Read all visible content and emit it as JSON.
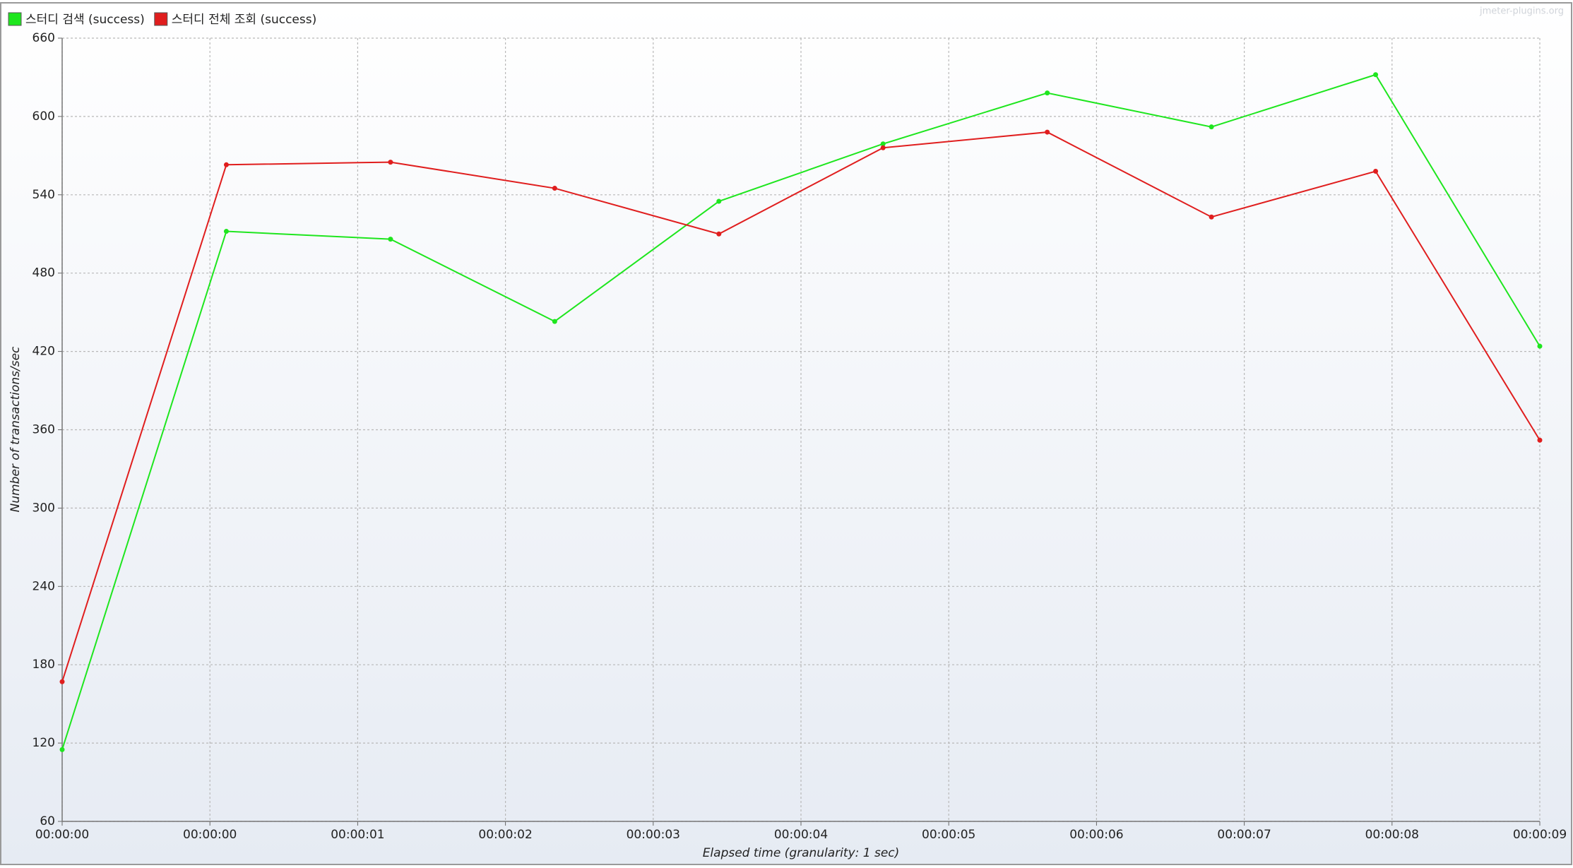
{
  "chart_data": {
    "type": "line",
    "watermark": "jmeter-plugins.org",
    "xlabel": "Elapsed time (granularity: 1 sec)",
    "ylabel": "Number of transactions/sec",
    "x": [
      0,
      1,
      2,
      3,
      4,
      5,
      6,
      7,
      8,
      9
    ],
    "xlim": [
      0,
      9
    ],
    "xticks": [
      {
        "value": 0,
        "label": "00:00:00"
      },
      {
        "value": 0.9,
        "label": "00:00:00"
      },
      {
        "value": 1.8,
        "label": "00:00:01"
      },
      {
        "value": 2.7,
        "label": "00:00:02"
      },
      {
        "value": 3.6,
        "label": "00:00:03"
      },
      {
        "value": 4.5,
        "label": "00:00:04"
      },
      {
        "value": 5.4,
        "label": "00:00:05"
      },
      {
        "value": 6.3,
        "label": "00:00:06"
      },
      {
        "value": 7.2,
        "label": "00:00:07"
      },
      {
        "value": 8.1,
        "label": "00:00:08"
      },
      {
        "value": 9,
        "label": "00:00:09"
      }
    ],
    "ylim": [
      60,
      660
    ],
    "yticks": [
      60,
      120,
      180,
      240,
      300,
      360,
      420,
      480,
      540,
      600,
      660
    ],
    "grid": true,
    "legend": "top-left",
    "series": [
      {
        "name": "스터디 검색 (success)",
        "color": "#1ee61e",
        "values": [
          115,
          512,
          506,
          443,
          535,
          579,
          618,
          592,
          632,
          424
        ]
      },
      {
        "name": "스터디 전체 조회 (success)",
        "color": "#e01e1e",
        "values": [
          167,
          563,
          565,
          545,
          510,
          576,
          588,
          523,
          558,
          352
        ]
      }
    ]
  }
}
